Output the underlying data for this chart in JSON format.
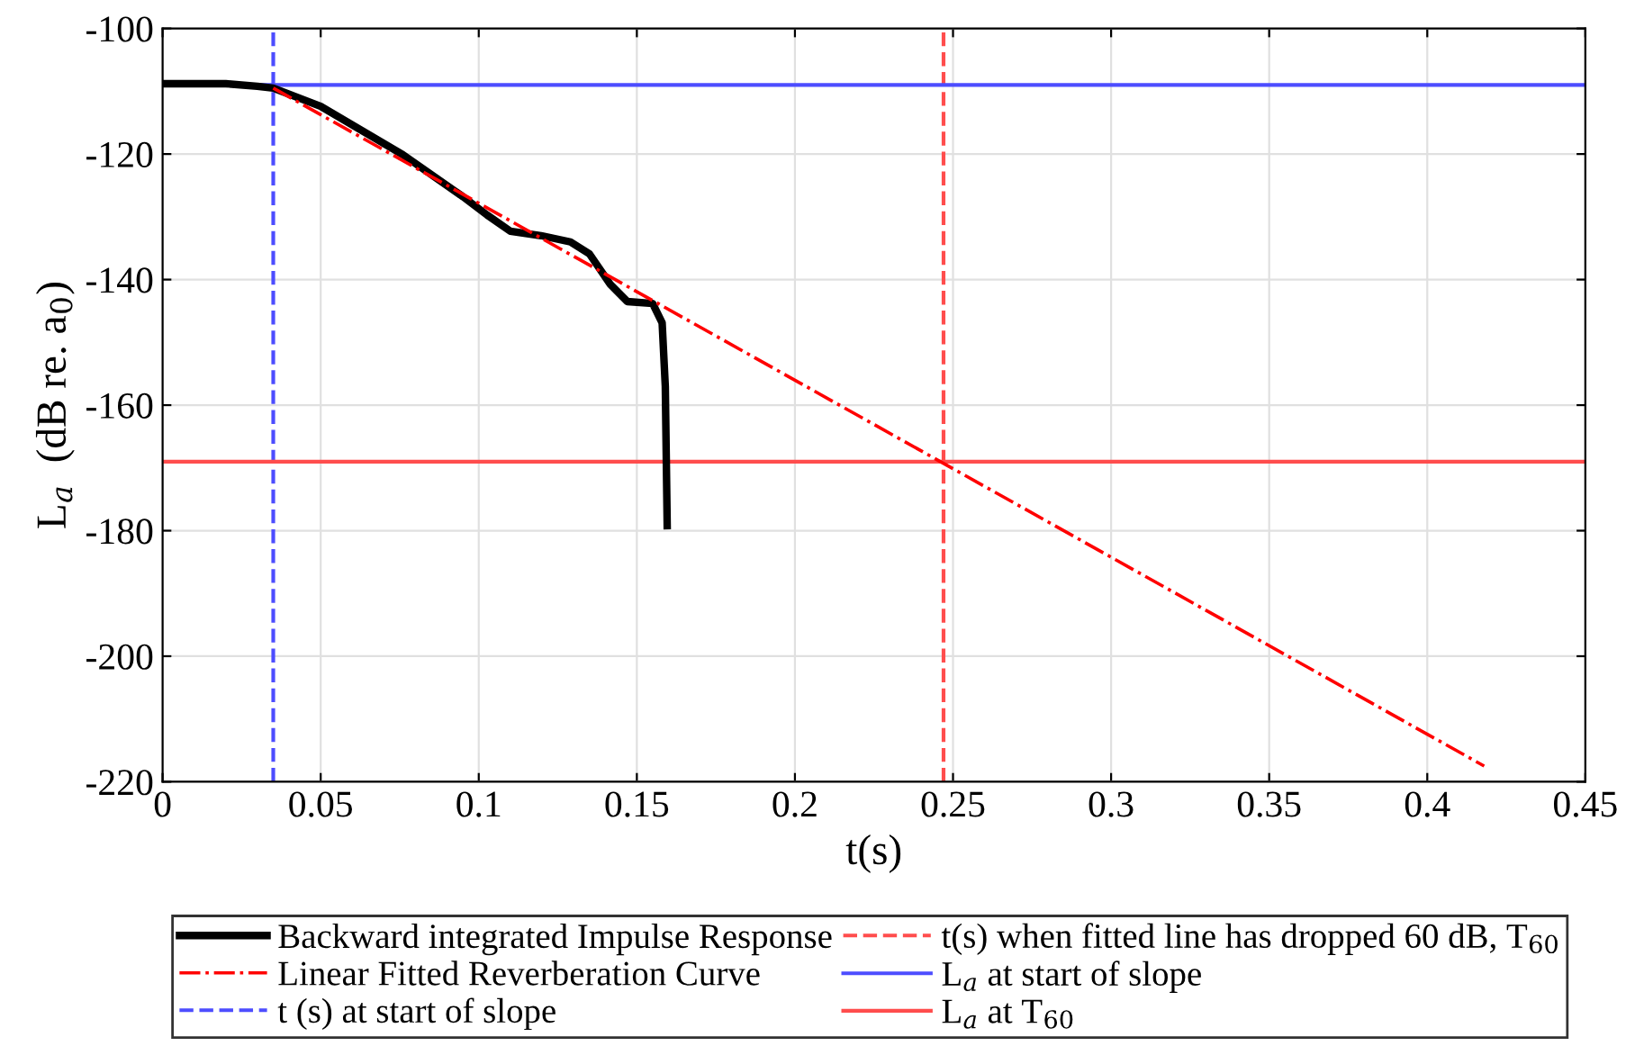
{
  "chart_data": {
    "type": "line",
    "xlabel": "t(s)",
    "ylabel": "L$_{a}$  (dB re. a$_{0}$)",
    "xlim": [
      0,
      0.45
    ],
    "xticks": [
      0,
      0.05,
      0.1,
      0.15,
      0.2,
      0.25,
      0.3,
      0.35,
      0.4,
      0.45
    ],
    "ylim": [
      -220,
      -100
    ],
    "yticks": [
      -220,
      -200,
      -180,
      -160,
      -140,
      -120,
      -100
    ],
    "grid": true,
    "legend": "bottom",
    "series": [
      {
        "name": "Backward integrated Impulse Response",
        "color": "#000000",
        "line_style": "solid",
        "x": [
          0,
          0.02,
          0.03,
          0.035,
          0.05,
          0.076,
          0.095,
          0.1026,
          0.11,
          0.1197,
          0.129,
          0.135,
          0.1415,
          0.147,
          0.155,
          0.158,
          0.159,
          0.1596
        ],
        "values": [
          -108.8,
          -108.8,
          -109.2,
          -109.5,
          -112.4,
          -120.1,
          -126.8,
          -129.7,
          -132.3,
          -133,
          -134,
          -135.9,
          -140.7,
          -143.5,
          -143.8,
          -146.9,
          -157,
          -179.2
        ]
      },
      {
        "name": "Linear Fitted Reverberation Curve",
        "color": "#ff0000",
        "line_style": "dashdot",
        "x": [
          0.035,
          0.418
        ],
        "values": [
          -109.5,
          -217.5
        ]
      }
    ],
    "ref_lines": [
      {
        "axis": "x",
        "value": 0.035,
        "label": "t (s) at start of slope",
        "color": "#4d4dff",
        "line_style": "dashed"
      },
      {
        "axis": "x",
        "value": 0.247,
        "label": "t(s) when fitted line has dropped 60 dB, T$_{60}$",
        "color": "#ff4d4d",
        "line_style": "dashed"
      },
      {
        "axis": "y",
        "value": -109,
        "label": "L$_{a}$ at start of slope",
        "color": "#4d4dff",
        "line_style": "solid"
      },
      {
        "axis": "y",
        "value": -169,
        "label": "L$_{a}$ at T$_{60}$",
        "color": "#ff4d4d",
        "line_style": "solid"
      }
    ]
  }
}
